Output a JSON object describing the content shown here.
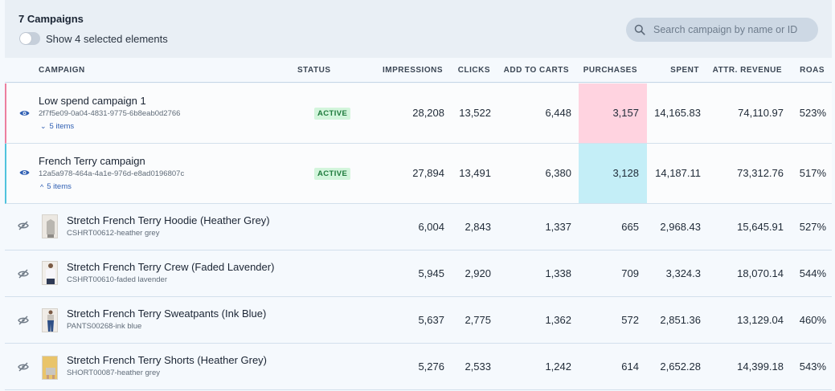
{
  "header": {
    "title": "7 Campaigns",
    "toggle_label": "Show 4 selected elements",
    "search_placeholder": "Search campaign by name or ID"
  },
  "columns": {
    "campaign": "CAMPAIGN",
    "status": "STATUS",
    "impressions": "IMPRESSIONS",
    "clicks": "CLICKS",
    "add_to_carts": "ADD TO CARTS",
    "purchases": "PURCHASES",
    "spent": "SPENT",
    "attr_revenue": "ATTR. REVENUE",
    "roas": "ROAS"
  },
  "campaigns": [
    {
      "name": "Low spend campaign 1",
      "id": "2f7f5e09-0a04-4831-9775-6b8eab0d2766",
      "items_label": "5 items",
      "items_chevron": "⌄",
      "status": "ACTIVE",
      "impressions": "28,208",
      "clicks": "13,522",
      "add_to_carts": "6,448",
      "purchases": "3,157",
      "spent": "14,165.83",
      "attr_revenue": "74,110.97",
      "roas": "523%",
      "highlight_color": "#ffd3e0"
    },
    {
      "name": "French Terry campaign",
      "id": "12a5a978-464a-4a1e-976d-e8ad0196807c",
      "items_label": "5 items",
      "items_chevron": "^",
      "status": "ACTIVE",
      "impressions": "27,894",
      "clicks": "13,491",
      "add_to_carts": "6,380",
      "purchases": "3,128",
      "spent": "14,187.11",
      "attr_revenue": "73,312.76",
      "roas": "517%",
      "highlight_color": "#c4eef7"
    }
  ],
  "products": [
    {
      "name": "Stretch French Terry Hoodie (Heather Grey)",
      "sku": "CSHRT00612-heather grey",
      "impressions": "6,004",
      "clicks": "2,843",
      "add_to_carts": "1,337",
      "purchases": "665",
      "spent": "2,968.43",
      "attr_revenue": "15,645.91",
      "roas": "527%"
    },
    {
      "name": "Stretch French Terry Crew (Faded Lavender)",
      "sku": "CSHRT00610-faded lavender",
      "impressions": "5,945",
      "clicks": "2,920",
      "add_to_carts": "1,338",
      "purchases": "709",
      "spent": "3,324.3",
      "attr_revenue": "18,070.14",
      "roas": "544%"
    },
    {
      "name": "Stretch French Terry Sweatpants (Ink Blue)",
      "sku": "PANTS00268-ink blue",
      "impressions": "5,637",
      "clicks": "2,775",
      "add_to_carts": "1,362",
      "purchases": "572",
      "spent": "2,851.36",
      "attr_revenue": "13,129.04",
      "roas": "460%"
    },
    {
      "name": "Stretch French Terry Shorts (Heather Grey)",
      "sku": "SHORT00087-heather grey",
      "impressions": "5,276",
      "clicks": "2,533",
      "add_to_carts": "1,242",
      "purchases": "614",
      "spent": "2,652.28",
      "attr_revenue": "14,399.18",
      "roas": "543%"
    }
  ],
  "colors": {
    "accent_link": "#2f5fb3",
    "active_badge_bg": "#d3f5dc",
    "active_badge_text": "#1e7a3c"
  },
  "icons": {
    "search": "search-icon",
    "visible": "eye-icon",
    "hidden": "eye-off-icon"
  }
}
